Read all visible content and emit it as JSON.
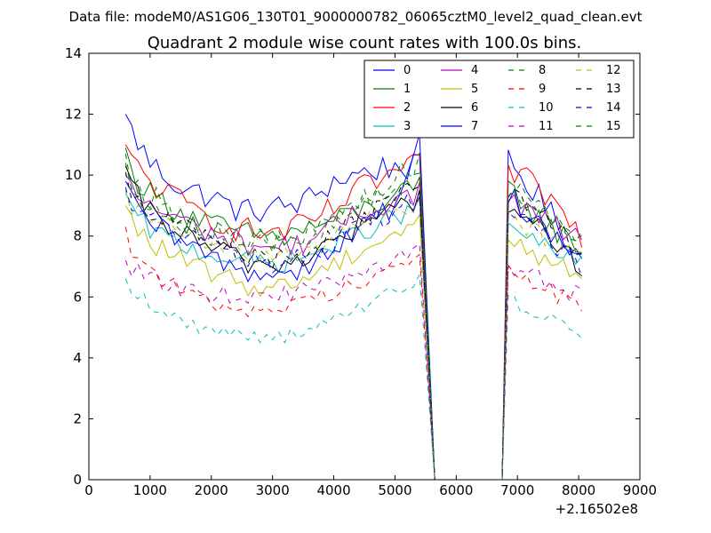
{
  "chart_data": {
    "type": "line",
    "suptitle": "Data file: modeM0/AS1G06_130T01_9000000782_06065cztM0_level2_quad_clean.evt",
    "title": "Quadrant 2 module wise count rates with 100.0s bins.",
    "xlabel": "",
    "ylabel": "",
    "x_offset_label": "+2.16502e8",
    "xlim": [
      0,
      9000
    ],
    "ylim": [
      0,
      14
    ],
    "xticks": [
      0,
      1000,
      2000,
      3000,
      4000,
      5000,
      6000,
      7000,
      8000,
      9000
    ],
    "xtick_labels": [
      "0",
      "1000",
      "2000",
      "3000",
      "4000",
      "5000",
      "6000",
      "7000",
      "8000",
      "9000"
    ],
    "yticks": [
      0,
      2,
      4,
      6,
      8,
      10,
      12,
      14
    ],
    "ytick_labels": [
      "0",
      "2",
      "4",
      "6",
      "8",
      "10",
      "12",
      "14"
    ],
    "grid": false,
    "legend_position": "top-right",
    "legend_columns": 4,
    "x_start": 600,
    "x_step": 100,
    "gap_start": 5650,
    "gap_end": 6750,
    "series": [
      {
        "name": "0",
        "color": "#0000ff",
        "dash": "solid",
        "start": 12.0,
        "knots": [
          [
            600,
            11.8
          ],
          [
            1000,
            10.4
          ],
          [
            1500,
            9.6
          ],
          [
            2000,
            9.3
          ],
          [
            2500,
            8.8
          ],
          [
            3000,
            8.9
          ],
          [
            3500,
            9.1
          ],
          [
            4000,
            9.8
          ],
          [
            4500,
            10.1
          ],
          [
            5000,
            10.3
          ],
          [
            5450,
            10.2
          ]
        ],
        "end": [
          10.5,
          9.0,
          7.2
        ],
        "noise": 0.45
      },
      {
        "name": "1",
        "color": "#008000",
        "dash": "solid",
        "start": 10.9,
        "knots": [
          [
            600,
            10.2
          ],
          [
            1000,
            9.4
          ],
          [
            1500,
            8.8
          ],
          [
            2000,
            8.4
          ],
          [
            2500,
            8.1
          ],
          [
            3000,
            8.0
          ],
          [
            3500,
            8.2
          ],
          [
            4000,
            8.5
          ],
          [
            4500,
            8.9
          ],
          [
            5000,
            9.3
          ],
          [
            5450,
            9.6
          ]
        ],
        "end": [
          9.6,
          8.4,
          7.6
        ],
        "noise": 0.4
      },
      {
        "name": "2",
        "color": "#ff0000",
        "dash": "solid",
        "start": 11.0,
        "knots": [
          [
            600,
            10.6
          ],
          [
            1000,
            9.8
          ],
          [
            1500,
            9.1
          ],
          [
            2000,
            8.6
          ],
          [
            2500,
            8.2
          ],
          [
            3000,
            8.1
          ],
          [
            3500,
            8.3
          ],
          [
            4000,
            8.9
          ],
          [
            4500,
            9.6
          ],
          [
            5000,
            10.1
          ],
          [
            5450,
            10.3
          ]
        ],
        "end": [
          10.2,
          9.4,
          8.0
        ],
        "noise": 0.45
      },
      {
        "name": "3",
        "color": "#00bfbf",
        "dash": "solid",
        "start": 9.4,
        "knots": [
          [
            600,
            9.0
          ],
          [
            1000,
            8.2
          ],
          [
            1500,
            7.7
          ],
          [
            2000,
            7.4
          ],
          [
            2500,
            7.2
          ],
          [
            3000,
            7.1
          ],
          [
            3500,
            7.3
          ],
          [
            4000,
            7.7
          ],
          [
            4500,
            8.2
          ],
          [
            5000,
            8.6
          ],
          [
            5450,
            9.0
          ]
        ],
        "end": [
          8.4,
          7.6,
          7.1
        ],
        "noise": 0.35
      },
      {
        "name": "4",
        "color": "#bf00bf",
        "dash": "solid",
        "start": 10.0,
        "knots": [
          [
            600,
            9.6
          ],
          [
            1000,
            9.0
          ],
          [
            1500,
            8.5
          ],
          [
            2000,
            8.1
          ],
          [
            2500,
            7.8
          ],
          [
            3000,
            7.6
          ],
          [
            3500,
            7.8
          ],
          [
            4000,
            8.3
          ],
          [
            4500,
            8.8
          ],
          [
            5000,
            9.2
          ],
          [
            5450,
            9.5
          ]
        ],
        "end": [
          9.2,
          8.5,
          7.8
        ],
        "noise": 0.4
      },
      {
        "name": "5",
        "color": "#bfbf00",
        "dash": "solid",
        "start": 9.0,
        "knots": [
          [
            600,
            8.6
          ],
          [
            1000,
            7.8
          ],
          [
            1500,
            7.2
          ],
          [
            2000,
            6.8
          ],
          [
            2500,
            6.4
          ],
          [
            3000,
            6.3
          ],
          [
            3500,
            6.6
          ],
          [
            4000,
            7.1
          ],
          [
            4500,
            7.6
          ],
          [
            5000,
            8.1
          ],
          [
            5450,
            8.5
          ]
        ],
        "end": [
          8.0,
          7.2,
          6.7
        ],
        "noise": 0.35
      },
      {
        "name": "6",
        "color": "#000000",
        "dash": "solid",
        "start": 10.3,
        "knots": [
          [
            600,
            9.7
          ],
          [
            1000,
            8.8
          ],
          [
            1500,
            8.1
          ],
          [
            2000,
            7.6
          ],
          [
            2500,
            7.2
          ],
          [
            3000,
            7.0
          ],
          [
            3500,
            7.3
          ],
          [
            4000,
            7.8
          ],
          [
            4500,
            8.4
          ],
          [
            5000,
            8.9
          ],
          [
            5450,
            9.3
          ]
        ],
        "end": [
          9.0,
          8.1,
          7.0
        ],
        "noise": 0.4
      },
      {
        "name": "7",
        "color": "#0000ff",
        "dash": "solid",
        "start": 9.8,
        "knots": [
          [
            600,
            9.3
          ],
          [
            1000,
            8.4
          ],
          [
            1500,
            7.8
          ],
          [
            2000,
            7.3
          ],
          [
            2500,
            6.9
          ],
          [
            3000,
            6.7
          ],
          [
            3500,
            7.0
          ],
          [
            4000,
            7.6
          ],
          [
            4500,
            8.3
          ],
          [
            5000,
            9.0
          ],
          [
            5450,
            11.4
          ]
        ],
        "end": [
          9.4,
          8.3,
          7.1
        ],
        "noise": 0.4
      },
      {
        "name": "8",
        "color": "#008000",
        "dash": "dashed",
        "start": 10.7,
        "knots": [
          [
            600,
            10.2
          ],
          [
            1000,
            9.3
          ],
          [
            1500,
            8.6
          ],
          [
            2000,
            8.1
          ],
          [
            2500,
            7.8
          ],
          [
            3000,
            7.7
          ],
          [
            3500,
            8.0
          ],
          [
            4000,
            8.5
          ],
          [
            4500,
            9.2
          ],
          [
            5000,
            9.8
          ],
          [
            5450,
            10.6
          ]
        ],
        "end": [
          9.8,
          9.0,
          7.9
        ],
        "noise": 0.45
      },
      {
        "name": "9",
        "color": "#ff0000",
        "dash": "dashed",
        "start": 8.3,
        "knots": [
          [
            600,
            7.8
          ],
          [
            1000,
            6.9
          ],
          [
            1500,
            6.2
          ],
          [
            2000,
            5.8
          ],
          [
            2500,
            5.6
          ],
          [
            3000,
            5.6
          ],
          [
            3500,
            5.8
          ],
          [
            4000,
            6.2
          ],
          [
            4500,
            6.6
          ],
          [
            5000,
            7.0
          ],
          [
            5450,
            7.3
          ]
        ],
        "end": [
          6.8,
          6.3,
          5.6
        ],
        "noise": 0.3
      },
      {
        "name": "10",
        "color": "#00bfbf",
        "dash": "dashed",
        "start": 6.6,
        "knots": [
          [
            600,
            6.5
          ],
          [
            1000,
            5.7
          ],
          [
            1500,
            5.2
          ],
          [
            2000,
            4.9
          ],
          [
            2500,
            4.8
          ],
          [
            3000,
            4.7
          ],
          [
            3500,
            4.8
          ],
          [
            4000,
            5.2
          ],
          [
            4500,
            5.7
          ],
          [
            5000,
            6.2
          ],
          [
            5450,
            6.7
          ]
        ],
        "end": [
          5.9,
          5.4,
          4.8
        ],
        "noise": 0.25
      },
      {
        "name": "11",
        "color": "#bf00bf",
        "dash": "dashed",
        "start": 7.2,
        "knots": [
          [
            600,
            7.0
          ],
          [
            1000,
            6.6
          ],
          [
            1500,
            6.3
          ],
          [
            2000,
            6.1
          ],
          [
            2500,
            6.0
          ],
          [
            3000,
            6.1
          ],
          [
            3500,
            6.2
          ],
          [
            4000,
            6.4
          ],
          [
            4500,
            6.8
          ],
          [
            5000,
            7.3
          ],
          [
            5450,
            7.7
          ]
        ],
        "end": [
          6.9,
          6.5,
          6.0
        ],
        "noise": 0.3
      },
      {
        "name": "12",
        "color": "#bfbf00",
        "dash": "dashed",
        "start": 9.5,
        "knots": [
          [
            600,
            9.1
          ],
          [
            1000,
            8.5
          ],
          [
            1500,
            8.1
          ],
          [
            2000,
            7.8
          ],
          [
            2500,
            7.5
          ],
          [
            3000,
            7.4
          ],
          [
            3500,
            7.6
          ],
          [
            4000,
            8.0
          ],
          [
            4500,
            8.5
          ],
          [
            5000,
            8.9
          ],
          [
            5450,
            9.2
          ]
        ],
        "end": [
          8.7,
          8.0,
          7.4
        ],
        "noise": 0.35
      },
      {
        "name": "13",
        "color": "#000000",
        "dash": "dashed",
        "start": 10.1,
        "knots": [
          [
            600,
            9.6
          ],
          [
            1000,
            8.9
          ],
          [
            1500,
            8.3
          ],
          [
            2000,
            7.8
          ],
          [
            2500,
            7.4
          ],
          [
            3000,
            7.2
          ],
          [
            3500,
            7.5
          ],
          [
            4000,
            8.0
          ],
          [
            4500,
            8.7
          ],
          [
            5000,
            9.2
          ],
          [
            5450,
            9.6
          ]
        ],
        "end": [
          9.3,
          8.5,
          7.5
        ],
        "noise": 0.4
      },
      {
        "name": "14",
        "color": "#0000ff",
        "dash": "dashed",
        "start": 9.6,
        "knots": [
          [
            600,
            9.2
          ],
          [
            1000,
            8.6
          ],
          [
            1500,
            8.1
          ],
          [
            2000,
            7.6
          ],
          [
            2500,
            7.3
          ],
          [
            3000,
            7.1
          ],
          [
            3500,
            7.3
          ],
          [
            4000,
            7.8
          ],
          [
            4500,
            8.4
          ],
          [
            5000,
            8.9
          ],
          [
            5450,
            9.3
          ]
        ],
        "end": [
          8.9,
          8.0,
          6.9
        ],
        "noise": 0.4
      },
      {
        "name": "15",
        "color": "#008000",
        "dash": "dashed",
        "start": 10.4,
        "knots": [
          [
            600,
            9.9
          ],
          [
            1000,
            9.1
          ],
          [
            1500,
            8.5
          ],
          [
            2000,
            8.1
          ],
          [
            2500,
            7.9
          ],
          [
            3000,
            7.8
          ],
          [
            3500,
            8.0
          ],
          [
            4000,
            8.4
          ],
          [
            4500,
            9.0
          ],
          [
            5000,
            9.6
          ],
          [
            5450,
            10.1
          ]
        ],
        "end": [
          9.5,
          8.8,
          7.8
        ],
        "noise": 0.4
      }
    ]
  }
}
